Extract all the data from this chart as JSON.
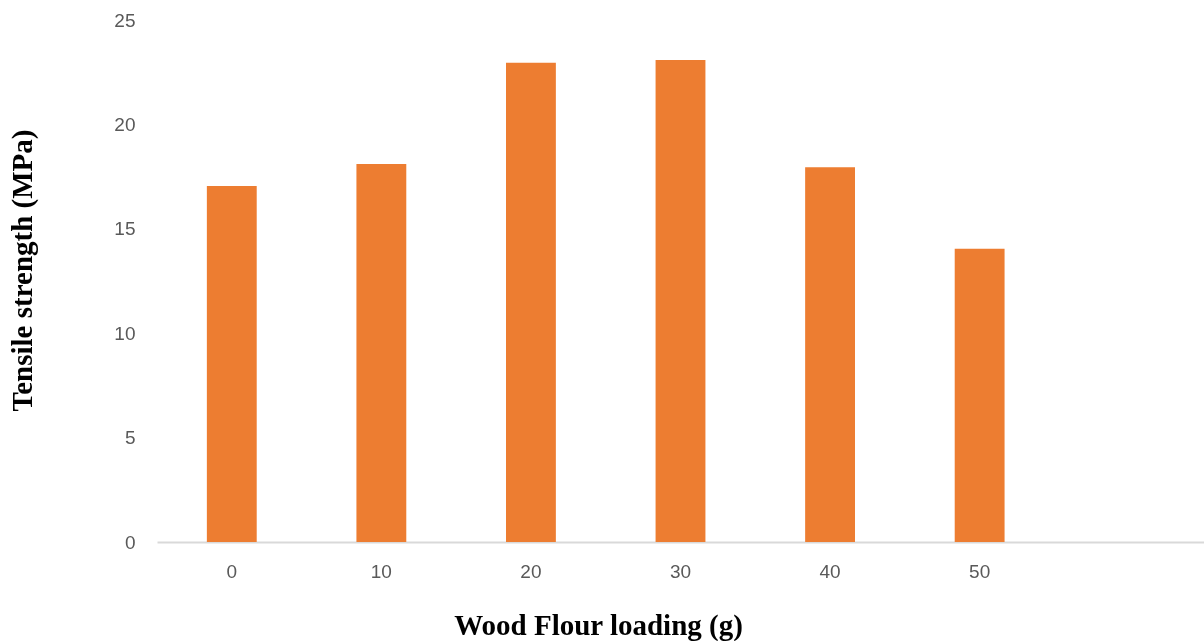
{
  "chart_data": {
    "type": "bar",
    "xlabel": "Wood Flour loading (g)",
    "ylabel": "Tensile strength (MPa)",
    "categories": [
      "0",
      "10",
      "20",
      "30",
      "40",
      "50",
      null
    ],
    "values": [
      17.05,
      18.1,
      22.95,
      23.08,
      17.95,
      14.05,
      null
    ],
    "color": "#ed7d31",
    "ylim": [
      0,
      25
    ],
    "yticks": [
      0,
      5,
      10,
      15,
      20,
      25
    ]
  }
}
